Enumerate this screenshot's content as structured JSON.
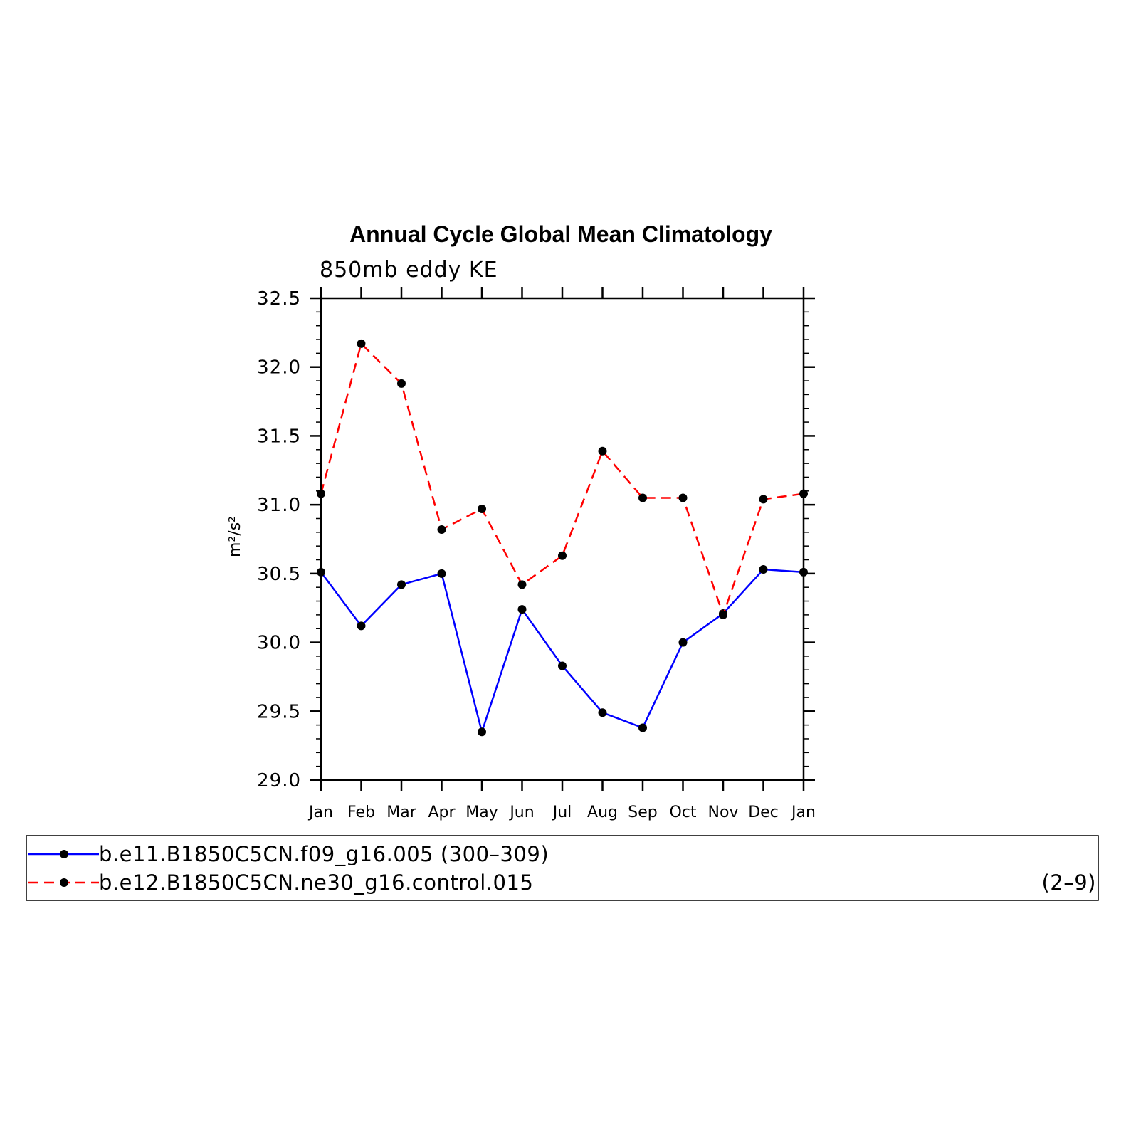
{
  "chart_data": {
    "type": "line",
    "title": "Annual Cycle Global Mean Climatology",
    "subtitle": "850mb eddy KE",
    "ylabel": "m²/s²",
    "xlabel": "",
    "categories": [
      "Jan",
      "Feb",
      "Mar",
      "Apr",
      "May",
      "Jun",
      "Jul",
      "Aug",
      "Sep",
      "Oct",
      "Nov",
      "Dec",
      "Jan"
    ],
    "ylim": [
      29.0,
      32.5
    ],
    "yticks": [
      "29.0",
      "29.5",
      "30.0",
      "30.5",
      "31.0",
      "31.5",
      "32.0",
      "32.5"
    ],
    "grid": false,
    "legend_position": "bottom",
    "series": [
      {
        "name": "b.e11.B1850C5CN.f09_g16.005 (300–309)",
        "color": "#0000ff",
        "line_style": "solid",
        "marker": "filled-circle",
        "values": [
          30.51,
          30.12,
          30.42,
          30.5,
          29.35,
          30.24,
          29.83,
          29.49,
          29.38,
          30.0,
          30.21,
          30.53,
          30.51
        ]
      },
      {
        "name": "b.e12.B1850C5CN.ne30_g16.control.015",
        "name_suffix": "(2–9)",
        "color": "#ff0000",
        "line_style": "dashed",
        "marker": "filled-circle",
        "values": [
          31.08,
          32.17,
          31.88,
          30.82,
          30.97,
          30.42,
          30.63,
          31.39,
          31.05,
          31.05,
          30.2,
          31.04,
          31.08
        ]
      }
    ]
  }
}
